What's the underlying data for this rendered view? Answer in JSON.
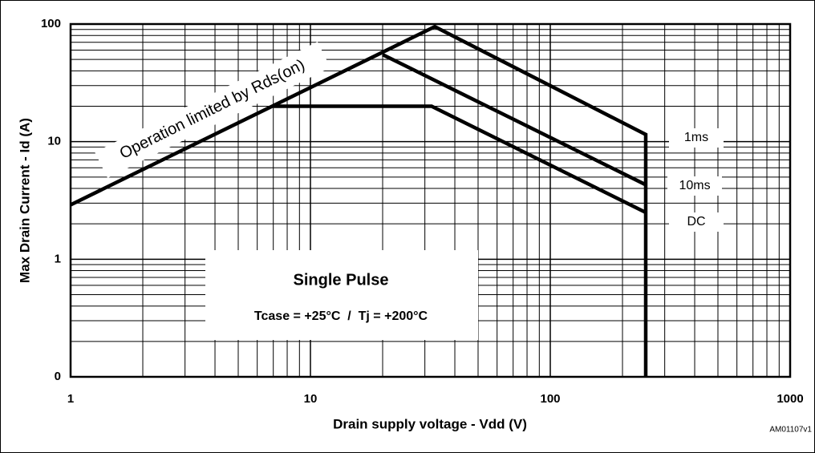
{
  "chart_data": {
    "type": "line",
    "xlabel": "Drain supply voltage - Vdd (V)",
    "ylabel": "Max Drain Current - Id (A)",
    "annotations": [
      "Operation limited by Rds(on)",
      "Single Pulse",
      "Tcase = +25°C  /  Tj = +200°C",
      "AM01107v1"
    ],
    "log_x": true,
    "log_y": true,
    "grid": true,
    "xlim": [
      1,
      1000
    ],
    "xticks": [
      1,
      10,
      100,
      1000
    ],
    "ylim": [
      0.1,
      100
    ],
    "yticks": [
      {
        "value": 0.1,
        "label": "0"
      },
      1,
      10,
      100
    ],
    "series": [
      {
        "name": "1ms",
        "color": "#000000",
        "x": [
          1,
          33,
          250,
          250
        ],
        "values": [
          2.9,
          95,
          11.5,
          0.1
        ]
      },
      {
        "name": "10ms",
        "color": "#000000",
        "x": [
          20,
          250
        ],
        "values": [
          55,
          4.3
        ]
      },
      {
        "name": "DC",
        "color": "#000000",
        "x": [
          7,
          32,
          250
        ],
        "values": [
          20,
          20,
          2.5
        ]
      }
    ]
  }
}
